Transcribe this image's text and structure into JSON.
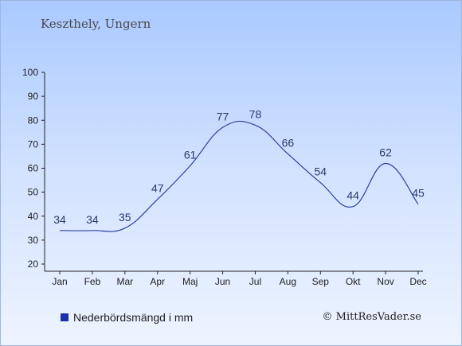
{
  "header": {
    "title": "Keszthely, Ungern"
  },
  "chart_data": {
    "type": "line",
    "categories": [
      "Jan",
      "Feb",
      "Mar",
      "Apr",
      "Maj",
      "Jun",
      "Jul",
      "Aug",
      "Sep",
      "Okt",
      "Nov",
      "Dec"
    ],
    "series": [
      {
        "name": "Nederbördsmängd i mm",
        "values": [
          34,
          34,
          35,
          47,
          61,
          77,
          78,
          66,
          54,
          44,
          62,
          45
        ]
      }
    ],
    "yticks": [
      "20",
      "30",
      "40",
      "50",
      "60",
      "70",
      "80",
      "90",
      "100"
    ],
    "ylim": [
      20,
      100
    ],
    "grid": false,
    "legend": "bottom-left",
    "line_color": "#2b3f9e"
  },
  "legend": {
    "label": "Nederbördsmängd i mm",
    "swatch_color": "#1a2fa8"
  },
  "footer": {
    "credit": "© MittResVader.se"
  }
}
